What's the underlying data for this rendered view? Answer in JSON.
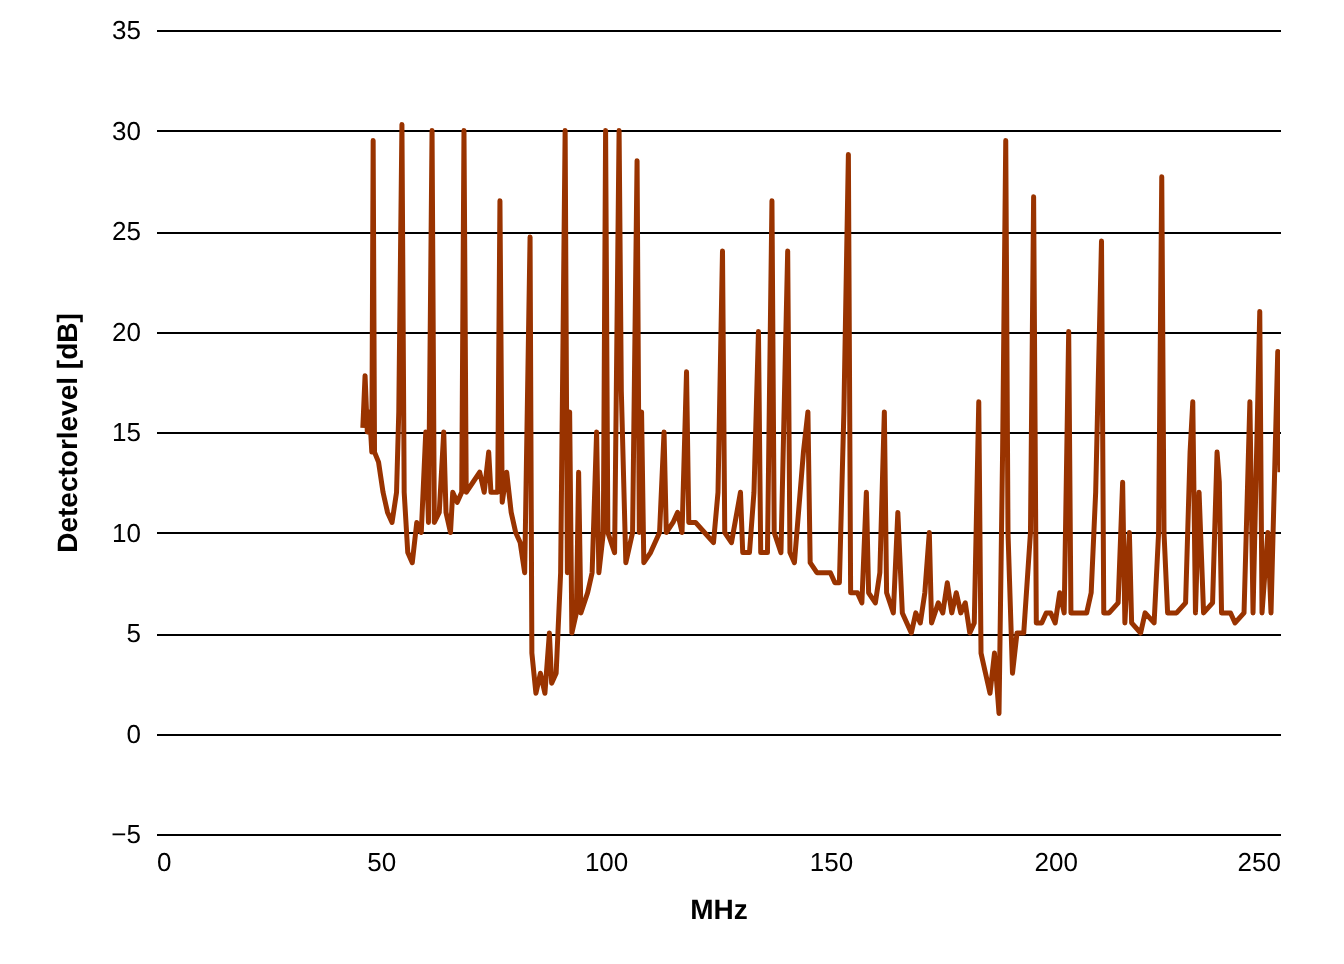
{
  "chart_data": {
    "type": "line",
    "xlabel": "MHz",
    "ylabel": "Detectorlevel [dB]",
    "xlim": [
      0,
      250
    ],
    "xticks": [
      0,
      50,
      100,
      150,
      200,
      250
    ],
    "ylim": [
      -5,
      35
    ],
    "yticks": [
      -5,
      0,
      5,
      10,
      15,
      20,
      25,
      30,
      35
    ],
    "grid": "y",
    "line_style": "solid",
    "marker": "none",
    "x": [
      46,
      46.5,
      47,
      47.5,
      48,
      48.3,
      48.6,
      49.5,
      50.5,
      51.5,
      52.5,
      53.5,
      54,
      54.7,
      55.2,
      56,
      57,
      58,
      59,
      60,
      60.6,
      61.4,
      61.9,
      63,
      64,
      64.5,
      65.5,
      66,
      67,
      68,
      68.5,
      69,
      70.5,
      72,
      73,
      74,
      74.5,
      76,
      76.5,
      77,
      78,
      79,
      80,
      81,
      82,
      83.2,
      83.6,
      84.5,
      85.5,
      86.5,
      87.5,
      88,
      89,
      90,
      91,
      91.5,
      92,
      92.5,
      93.5,
      94,
      94.5,
      96,
      97,
      98,
      98.5,
      99.5,
      100,
      100.5,
      102,
      103,
      103.5,
      104.5,
      106,
      107,
      107.5,
      108,
      108.5,
      110,
      112,
      113,
      113.5,
      115,
      116,
      117,
      118,
      118.5,
      120,
      122,
      124,
      125,
      126,
      126.5,
      128,
      130,
      130.5,
      132,
      133,
      134,
      134.5,
      136,
      137,
      137.5,
      139,
      140.5,
      141,
      142,
      144,
      145,
      145.5,
      147,
      149,
      150,
      151,
      152,
      153,
      154,
      154.5,
      156,
      157,
      158,
      158.5,
      160,
      161,
      162,
      162.5,
      164,
      165,
      166,
      168,
      169,
      170,
      171,
      172,
      172.5,
      174,
      175,
      176,
      177,
      178,
      179,
      180,
      181,
      182,
      183,
      183.5,
      184.5,
      185.5,
      186.5,
      187.5,
      188.3,
      189,
      189.5,
      190.5,
      191.5,
      193,
      194.5,
      195.2,
      195.8,
      197,
      198,
      199,
      200,
      201,
      202,
      203,
      203.5,
      205,
      207,
      208,
      209,
      210.3,
      210.8,
      212,
      214,
      215,
      215.5,
      216.5,
      217,
      219,
      220,
      222,
      223,
      223.7,
      224.2,
      225,
      227,
      229,
      230,
      230.6,
      231.2,
      232,
      233,
      235,
      236,
      236.5,
      237,
      239,
      240,
      242,
      243.3,
      244,
      245.5,
      246,
      247.3,
      248,
      249.5,
      250
    ],
    "series": [
      {
        "color": "#993300",
        "values": [
          15.2,
          17.8,
          15,
          16,
          14,
          29.5,
          14,
          13.5,
          12,
          11,
          10.5,
          12,
          16,
          30.3,
          12,
          9,
          8.5,
          10.5,
          10,
          15,
          10.5,
          30,
          10.5,
          11,
          15,
          11,
          10,
          12,
          11.5,
          12,
          30,
          12,
          12.5,
          13,
          12,
          14,
          12,
          12,
          26.5,
          11.5,
          13,
          11,
          10,
          9.5,
          8,
          24.7,
          4,
          2,
          3,
          2,
          5,
          2.5,
          3,
          8,
          30,
          8,
          16,
          5,
          6,
          13,
          6,
          7,
          8,
          15,
          8,
          10,
          30,
          10,
          9,
          30,
          17,
          8.5,
          10,
          28.5,
          10,
          16,
          8.5,
          9,
          10,
          15,
          10,
          10.5,
          11,
          10,
          18,
          10.5,
          10.5,
          10,
          9.5,
          12,
          24,
          10,
          9.5,
          12,
          9,
          9,
          12,
          20,
          9,
          9,
          26.5,
          10,
          9,
          24,
          9,
          8.5,
          14,
          16,
          8.5,
          8,
          8,
          8,
          7.5,
          7.5,
          16,
          28.8,
          7,
          7,
          6.5,
          12,
          7,
          6.5,
          8,
          16,
          7,
          6,
          11,
          6,
          5,
          6,
          5.5,
          7,
          10,
          5.5,
          6.5,
          6,
          7.5,
          6,
          7,
          6,
          6.5,
          5,
          5.5,
          16.5,
          4,
          3,
          2,
          4,
          1,
          14,
          29.5,
          10,
          3,
          5,
          5,
          10,
          26.7,
          5.5,
          5.5,
          6,
          6,
          5.5,
          7,
          6,
          20,
          6,
          6,
          6,
          7,
          12,
          24.5,
          6,
          6,
          6.5,
          12.5,
          5.5,
          10,
          5.5,
          5,
          6,
          5.5,
          10,
          27.7,
          10,
          6,
          6,
          6.5,
          14,
          16.5,
          6,
          12,
          6,
          6.5,
          14,
          12.5,
          6,
          6,
          5.5,
          6,
          16.5,
          6,
          21,
          6,
          10,
          6,
          19,
          13
        ]
      }
    ]
  }
}
